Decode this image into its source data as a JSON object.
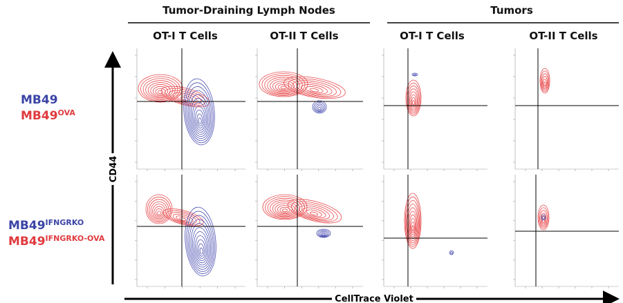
{
  "headers": {
    "lymph_nodes": "Tumor-Draining Lymph Nodes",
    "tumors": "Tumors"
  },
  "columns": [
    "OT-I T Cells",
    "OT-II T Cells",
    "OT-I T Cells",
    "OT-II T Cells"
  ],
  "rows": [
    {
      "lines": [
        {
          "base": "MB49"
        },
        {
          "base": "MB49",
          "sup": "OVA"
        }
      ]
    },
    {
      "lines": [
        {
          "base": "MB49",
          "sup": "IFNGRKO"
        },
        {
          "base": "MB49",
          "sup": "IFNGRKO-OVA"
        }
      ]
    }
  ],
  "y_axis": "CD44",
  "x_axis": "CellTrace Violet"
}
